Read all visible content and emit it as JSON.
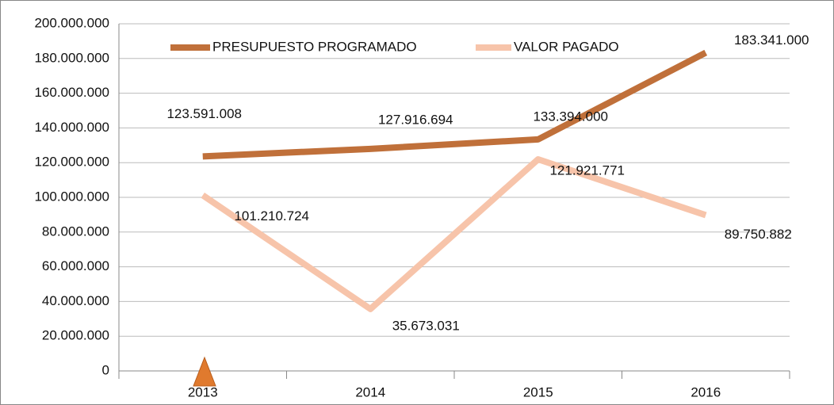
{
  "chart_data": {
    "type": "line",
    "categories": [
      "2013",
      "2014",
      "2015",
      "2016"
    ],
    "series": [
      {
        "name": "PRESUPUESTO PROGRAMADO",
        "color": "#c0703a",
        "values": [
          123591008,
          127916694,
          133394000,
          183341000
        ],
        "value_labels": [
          "123.591.008",
          "127.916.694",
          "133.394.000",
          "183.341.000"
        ]
      },
      {
        "name": "VALOR PAGADO",
        "color": "#f7c4aa",
        "values": [
          101210724,
          35673031,
          121921771,
          89750882
        ],
        "value_labels": [
          "101.210.724",
          "35.673.031",
          "121.921.771",
          "89.750.882"
        ]
      }
    ],
    "ylim": [
      0,
      200000000
    ],
    "yticks": [
      {
        "value": 0,
        "label": "0"
      },
      {
        "value": 20000000,
        "label": "20.000.000"
      },
      {
        "value": 40000000,
        "label": "40.000.000"
      },
      {
        "value": 60000000,
        "label": "60.000.000"
      },
      {
        "value": 80000000,
        "label": "80.000.000"
      },
      {
        "value": 100000000,
        "label": "100.000.000"
      },
      {
        "value": 120000000,
        "label": "120.000.000"
      },
      {
        "value": 140000000,
        "label": "140.000.000"
      },
      {
        "value": 160000000,
        "label": "160.000.000"
      },
      {
        "value": 180000000,
        "label": "180.000.000"
      },
      {
        "value": 200000000,
        "label": "200.000.000"
      }
    ],
    "grid": true,
    "legend": "top"
  }
}
